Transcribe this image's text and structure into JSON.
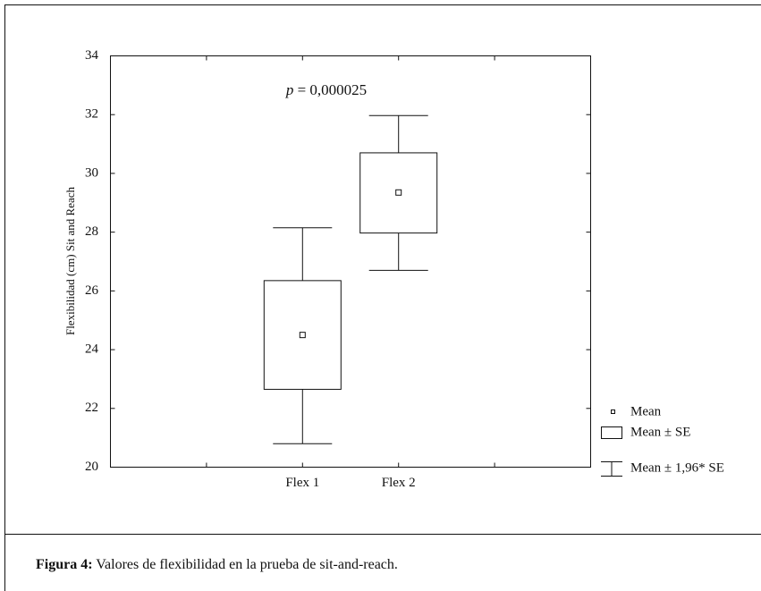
{
  "chart_data": {
    "type": "box",
    "ylabel": "Flexibilidad (cm) Sit and Reach",
    "annotation": [
      "p",
      "= 0,000025"
    ],
    "categories": [
      "Flex 1",
      "Flex 2"
    ],
    "series": [
      {
        "name": "Mean",
        "values": [
          24.5,
          29.35
        ]
      },
      {
        "name": "Mean ± SE",
        "low": [
          22.65,
          27.97
        ],
        "high": [
          26.35,
          30.7
        ]
      },
      {
        "name": "Mean ± 1,96* SE",
        "low": [
          20.8,
          26.7
        ],
        "high": [
          28.15,
          31.97
        ]
      }
    ],
    "color": "#111111",
    "ylim": [
      20,
      34
    ],
    "yticks": [
      20,
      22,
      24,
      26,
      28,
      30,
      32,
      34
    ]
  },
  "caption": {
    "label": "Figura 4:",
    "text": "Valores de flexibilidad en la prueba de sit-and-reach."
  }
}
